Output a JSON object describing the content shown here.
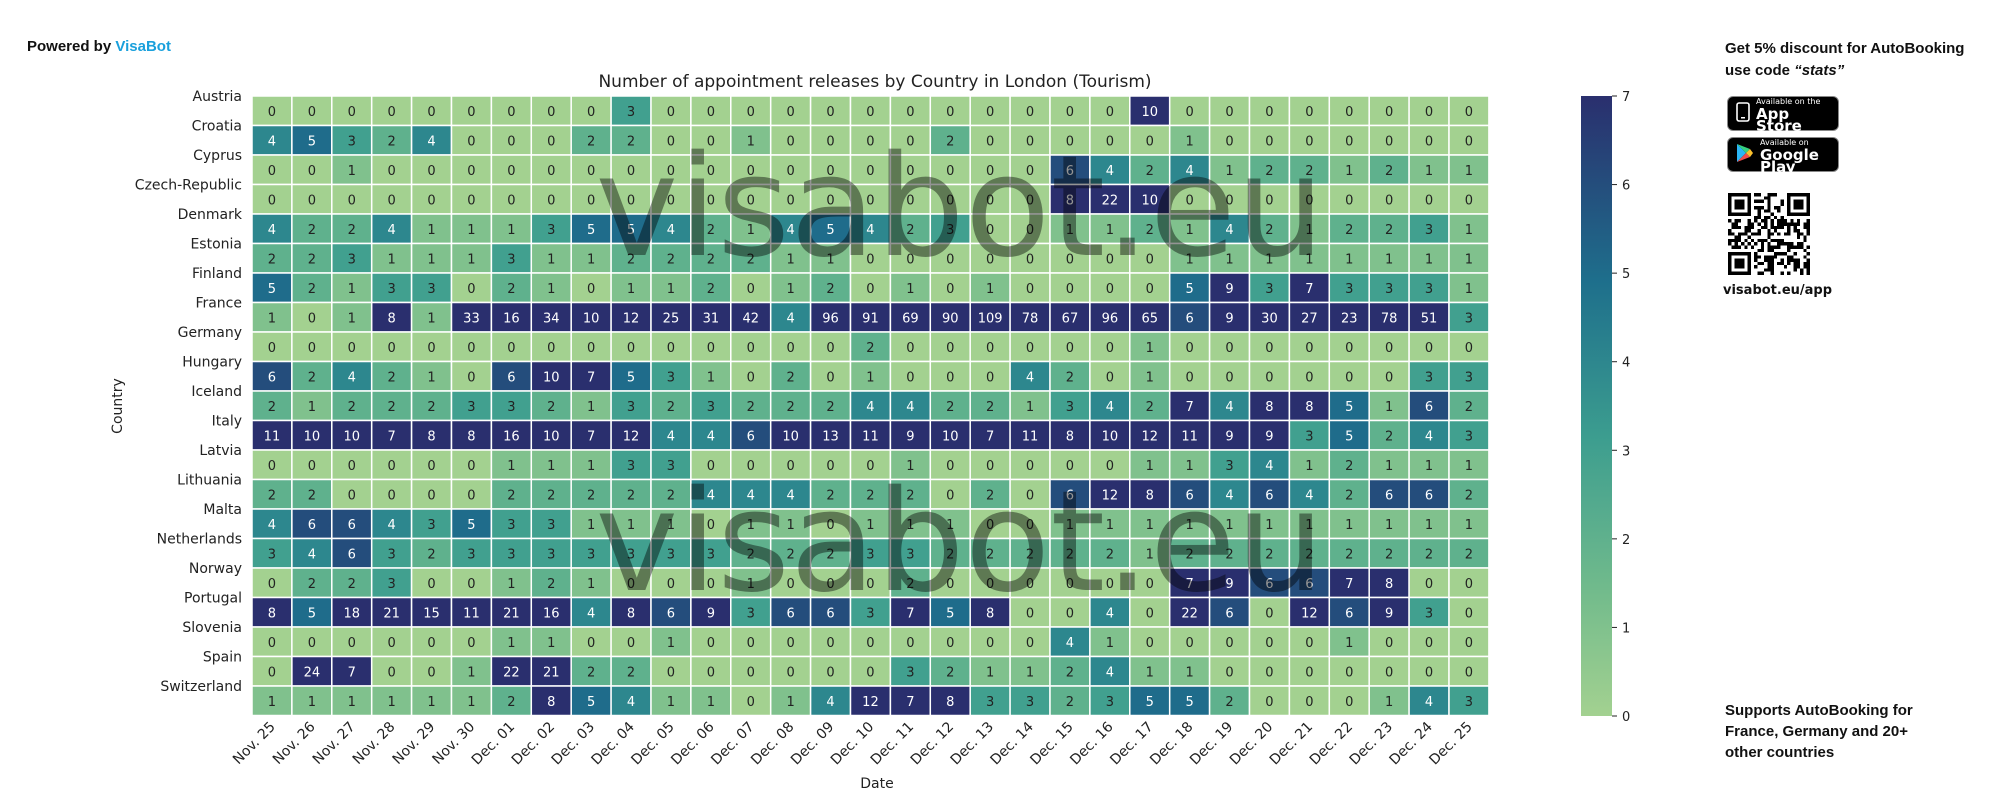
{
  "branding": {
    "powered_prefix": "Powered by",
    "powered_brand": "VisaBot",
    "watermark": "visabot.eu"
  },
  "sidebar": {
    "promo_prefix": "Get 5% discount for ",
    "promo_brand": "AutoBooking",
    "promo_code_text": "use code ",
    "promo_code": "“stats”",
    "appstore_small": "Available on the",
    "appstore_big": "App Store",
    "googleplay_small": "Available on",
    "googleplay_big": "Google Play",
    "qr_label": "visabot.eu/app",
    "supports_prefix": "Supports ",
    "supports_brand": "AutoBooking",
    "supports_suffix": " for France, Germany and 20+ other countries"
  },
  "colors": {
    "low": "#a3d190",
    "mid": "#3c9d8f",
    "high": "#2a3577",
    "accent": "#1aa0dc"
  },
  "chart_data": {
    "type": "heatmap",
    "title": "Number of appointment releases by Country in London (Tourism)",
    "xlabel": "Date",
    "ylabel": "Country",
    "colorbar_range": [
      0,
      7
    ],
    "colorbar_ticks": [
      "0",
      "1",
      "2",
      "3",
      "4",
      "5",
      "6",
      "7"
    ],
    "x": [
      "Nov. 25",
      "Nov. 26",
      "Nov. 27",
      "Nov. 28",
      "Nov. 29",
      "Nov. 30",
      "Dec. 01",
      "Dec. 02",
      "Dec. 03",
      "Dec. 04",
      "Dec. 05",
      "Dec. 06",
      "Dec. 07",
      "Dec. 08",
      "Dec. 09",
      "Dec. 10",
      "Dec. 11",
      "Dec. 12",
      "Dec. 13",
      "Dec. 14",
      "Dec. 15",
      "Dec. 16",
      "Dec. 17",
      "Dec. 18",
      "Dec. 19",
      "Dec. 20",
      "Dec. 21",
      "Dec. 22",
      "Dec. 23",
      "Dec. 24",
      "Dec. 25"
    ],
    "y": [
      "Austria",
      "Croatia",
      "Cyprus",
      "Czech-Republic",
      "Denmark",
      "Estonia",
      "Finland",
      "France",
      "Germany",
      "Hungary",
      "Iceland",
      "Italy",
      "Latvia",
      "Lithuania",
      "Malta",
      "Netherlands",
      "Norway",
      "Portugal",
      "Slovenia",
      "Spain",
      "Switzerland"
    ],
    "values": [
      [
        0,
        0,
        0,
        0,
        0,
        0,
        0,
        0,
        0,
        3,
        0,
        0,
        0,
        0,
        0,
        0,
        0,
        0,
        0,
        0,
        0,
        0,
        10,
        0,
        0,
        0,
        0,
        0,
        0,
        0,
        0
      ],
      [
        4,
        5,
        3,
        2,
        4,
        0,
        0,
        0,
        2,
        2,
        0,
        0,
        1,
        0,
        0,
        0,
        0,
        2,
        0,
        0,
        0,
        0,
        0,
        1,
        0,
        0,
        0,
        0,
        0,
        0,
        0
      ],
      [
        0,
        0,
        1,
        0,
        0,
        0,
        0,
        0,
        0,
        0,
        0,
        0,
        0,
        0,
        0,
        0,
        0,
        0,
        0,
        0,
        6,
        4,
        2,
        4,
        1,
        2,
        2,
        1,
        2,
        1,
        1
      ],
      [
        0,
        0,
        0,
        0,
        0,
        0,
        0,
        0,
        0,
        0,
        0,
        0,
        0,
        0,
        0,
        0,
        0,
        0,
        0,
        0,
        8,
        22,
        10,
        0,
        0,
        0,
        0,
        0,
        0,
        0,
        0
      ],
      [
        4,
        2,
        2,
        4,
        1,
        1,
        1,
        3,
        5,
        5,
        4,
        2,
        1,
        4,
        5,
        4,
        2,
        3,
        0,
        0,
        1,
        1,
        2,
        1,
        4,
        2,
        1,
        2,
        2,
        3,
        1
      ],
      [
        2,
        2,
        3,
        1,
        1,
        1,
        3,
        1,
        1,
        2,
        2,
        2,
        2,
        1,
        1,
        0,
        0,
        0,
        0,
        0,
        0,
        0,
        0,
        1,
        1,
        1,
        1,
        1,
        1,
        1,
        1
      ],
      [
        5,
        2,
        1,
        3,
        3,
        0,
        2,
        1,
        0,
        1,
        1,
        2,
        0,
        1,
        2,
        0,
        1,
        0,
        1,
        0,
        0,
        0,
        0,
        5,
        9,
        3,
        7,
        3,
        3,
        3,
        1
      ],
      [
        1,
        0,
        1,
        8,
        1,
        33,
        16,
        34,
        10,
        12,
        25,
        31,
        42,
        4,
        96,
        91,
        69,
        90,
        109,
        78,
        67,
        96,
        65,
        6,
        9,
        30,
        27,
        23,
        78,
        51,
        3
      ],
      [
        0,
        0,
        0,
        0,
        0,
        0,
        0,
        0,
        0,
        0,
        0,
        0,
        0,
        0,
        0,
        2,
        0,
        0,
        0,
        0,
        0,
        0,
        1,
        0,
        0,
        0,
        0,
        0,
        0,
        0,
        0
      ],
      [
        6,
        2,
        4,
        2,
        1,
        0,
        6,
        10,
        7,
        5,
        3,
        1,
        0,
        2,
        0,
        1,
        0,
        0,
        0,
        4,
        2,
        0,
        1,
        0,
        0,
        0,
        0,
        0,
        0,
        3,
        3
      ],
      [
        2,
        1,
        2,
        2,
        2,
        3,
        3,
        2,
        1,
        3,
        2,
        3,
        2,
        2,
        2,
        4,
        4,
        2,
        2,
        1,
        3,
        4,
        2,
        7,
        4,
        8,
        8,
        5,
        1,
        6,
        2
      ],
      [
        11,
        10,
        10,
        7,
        8,
        8,
        16,
        10,
        7,
        12,
        4,
        4,
        6,
        10,
        13,
        11,
        9,
        10,
        7,
        11,
        8,
        10,
        12,
        11,
        9,
        9,
        3,
        5,
        2,
        4,
        3
      ],
      [
        0,
        0,
        0,
        0,
        0,
        0,
        1,
        1,
        1,
        3,
        3,
        0,
        0,
        0,
        0,
        0,
        1,
        0,
        0,
        0,
        0,
        0,
        1,
        1,
        3,
        4,
        1,
        2,
        1,
        1,
        1
      ],
      [
        2,
        2,
        0,
        0,
        0,
        0,
        2,
        2,
        2,
        2,
        2,
        4,
        4,
        4,
        2,
        2,
        2,
        0,
        2,
        0,
        6,
        12,
        8,
        6,
        4,
        6,
        4,
        2,
        6,
        6,
        2
      ],
      [
        4,
        6,
        6,
        4,
        3,
        5,
        3,
        3,
        1,
        1,
        1,
        0,
        1,
        1,
        0,
        1,
        1,
        1,
        0,
        0,
        1,
        1,
        1,
        1,
        1,
        1,
        1,
        1,
        1,
        1,
        1
      ],
      [
        3,
        4,
        6,
        3,
        2,
        3,
        3,
        3,
        3,
        3,
        3,
        3,
        2,
        2,
        2,
        3,
        3,
        2,
        2,
        2,
        2,
        2,
        1,
        2,
        2,
        2,
        2,
        2,
        2,
        2,
        2
      ],
      [
        0,
        2,
        2,
        3,
        0,
        0,
        1,
        2,
        1,
        0,
        0,
        0,
        1,
        0,
        0,
        0,
        2,
        0,
        0,
        0,
        0,
        0,
        0,
        7,
        9,
        6,
        6,
        7,
        8,
        0,
        0
      ],
      [
        8,
        5,
        18,
        21,
        15,
        11,
        21,
        16,
        4,
        8,
        6,
        9,
        3,
        6,
        6,
        3,
        7,
        5,
        8,
        0,
        0,
        4,
        0,
        22,
        6,
        0,
        12,
        6,
        9,
        3,
        0
      ],
      [
        0,
        0,
        0,
        0,
        0,
        0,
        1,
        1,
        0,
        0,
        1,
        0,
        0,
        0,
        0,
        0,
        0,
        0,
        0,
        0,
        4,
        1,
        0,
        0,
        0,
        0,
        0,
        1,
        0,
        0,
        0
      ],
      [
        0,
        24,
        7,
        0,
        0,
        1,
        22,
        21,
        2,
        2,
        0,
        0,
        0,
        0,
        0,
        0,
        3,
        2,
        1,
        1,
        2,
        4,
        1,
        1,
        0,
        0,
        0,
        0,
        0,
        0,
        0
      ],
      [
        1,
        1,
        1,
        1,
        1,
        1,
        2,
        8,
        5,
        4,
        1,
        1,
        0,
        1,
        4,
        12,
        7,
        8,
        3,
        3,
        2,
        3,
        5,
        5,
        2,
        0,
        0,
        0,
        1,
        4,
        3
      ]
    ]
  }
}
